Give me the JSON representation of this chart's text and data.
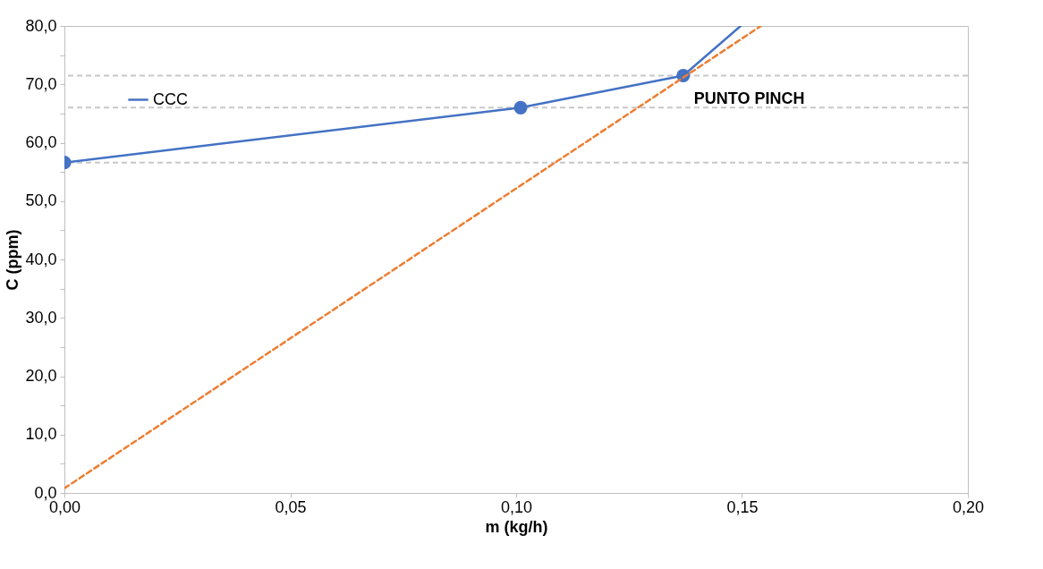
{
  "chart_data": {
    "type": "line",
    "xlabel": "m (kg/h)",
    "ylabel": "C (ppm)",
    "series": [
      {
        "name": "CCC",
        "color": "#4472c4",
        "x": [
          0.0,
          0.101,
          0.137
        ],
        "values": [
          56.6,
          66.0,
          71.5
        ],
        "marker": "circle",
        "line_style": "solid"
      },
      {
        "color": "#4472c4",
        "x": [
          0.137,
          0.1497
        ],
        "values": [
          71.5,
          80.0
        ],
        "marker": "none",
        "line_style": "solid"
      },
      {
        "color": "#ed7d31",
        "x": [
          0.0,
          0.1542
        ],
        "values": [
          0.8,
          80.0
        ],
        "marker": "none",
        "line_style": "dashed"
      }
    ],
    "xlim": [
      0.0,
      0.2
    ],
    "xticks": [
      {
        "value": 0,
        "label": "0,00"
      },
      {
        "value": 0.05,
        "label": "0,05"
      },
      {
        "value": 0.1,
        "label": "0,10"
      },
      {
        "value": 0.15,
        "label": "0,15"
      },
      {
        "value": 0.2,
        "label": "0,20"
      }
    ],
    "ylim": [
      0,
      80
    ],
    "yticks": [
      {
        "value": 0,
        "label": "0,0"
      },
      {
        "value": 5,
        "label": null
      },
      {
        "value": 10,
        "label": "10,0"
      },
      {
        "value": 15,
        "label": null
      },
      {
        "value": 20,
        "label": "20,0"
      },
      {
        "value": 25,
        "label": null
      },
      {
        "value": 30,
        "label": "30,0"
      },
      {
        "value": 35,
        "label": null
      },
      {
        "value": 40,
        "label": "40,0"
      },
      {
        "value": 45,
        "label": null
      },
      {
        "value": 50,
        "label": "50,0"
      },
      {
        "value": 55,
        "label": null
      },
      {
        "value": 60,
        "label": "60,0"
      },
      {
        "value": 65,
        "label": null
      },
      {
        "value": 70,
        "label": "70,0"
      },
      {
        "value": 75,
        "label": null
      },
      {
        "value": 80,
        "label": "80,0"
      }
    ],
    "ref_lines": [
      {
        "axis": "y",
        "value": 56.6,
        "color": "#c8c8c8",
        "line_style": "dashed"
      },
      {
        "axis": "y",
        "value": 66.0,
        "color": "#c8c8c8",
        "line_style": "dashed"
      },
      {
        "axis": "y",
        "value": 71.5,
        "color": "#c8c8c8",
        "line_style": "dashed"
      }
    ],
    "annotations": [
      {
        "text": "PUNTO PINCH",
        "x": 0.137,
        "y": 71.5
      }
    ],
    "grid": false,
    "legend": "top left"
  }
}
